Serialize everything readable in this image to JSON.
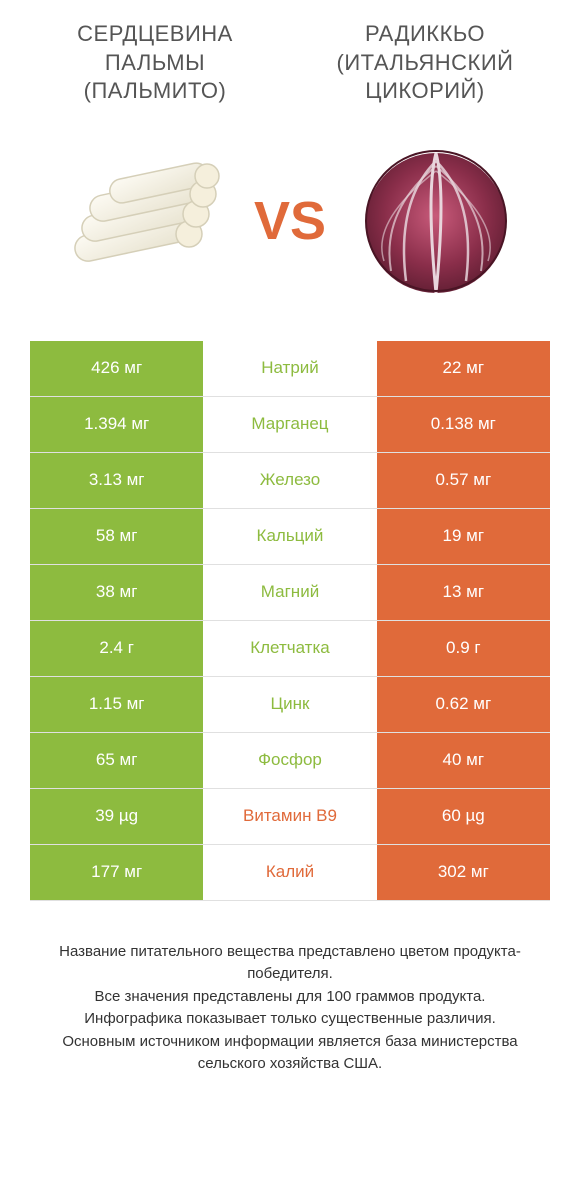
{
  "colors": {
    "green": "#8dbb3f",
    "orange": "#e06a3a",
    "white": "#ffffff",
    "text_gray": "#555555",
    "border": "#e0e0e0"
  },
  "left_product": {
    "title_line1": "СЕРДЦЕВИНА",
    "title_line2": "ПАЛЬМЫ",
    "title_line3": "(ПАЛЬМИТО)"
  },
  "right_product": {
    "title_line1": "РАДИККЬО",
    "title_line2": "(ИТАЛЬЯНСКИЙ",
    "title_line3": "ЦИКОРИЙ)"
  },
  "vs_label": "VS",
  "rows": [
    {
      "left": "426 мг",
      "mid": "Натрий",
      "right": "22 мг",
      "winner": "left"
    },
    {
      "left": "1.394 мг",
      "mid": "Марганец",
      "right": "0.138 мг",
      "winner": "left"
    },
    {
      "left": "3.13 мг",
      "mid": "Железо",
      "right": "0.57 мг",
      "winner": "left"
    },
    {
      "left": "58 мг",
      "mid": "Кальций",
      "right": "19 мг",
      "winner": "left"
    },
    {
      "left": "38 мг",
      "mid": "Магний",
      "right": "13 мг",
      "winner": "left"
    },
    {
      "left": "2.4 г",
      "mid": "Клетчатка",
      "right": "0.9 г",
      "winner": "left"
    },
    {
      "left": "1.15 мг",
      "mid": "Цинк",
      "right": "0.62 мг",
      "winner": "left"
    },
    {
      "left": "65 мг",
      "mid": "Фосфор",
      "right": "40 мг",
      "winner": "left"
    },
    {
      "left": "39 µg",
      "mid": "Витамин B9",
      "right": "60 µg",
      "winner": "right"
    },
    {
      "left": "177 мг",
      "mid": "Калий",
      "right": "302 мг",
      "winner": "right"
    }
  ],
  "footer": {
    "line1": "Название питательного вещества представлено цветом продукта-победителя.",
    "line2": "Все значения представлены для 100 граммов продукта.",
    "line3": "Инфографика показывает только существенные различия.",
    "line4": "Основным источником информации является база министерства сельского хозяйства США."
  }
}
